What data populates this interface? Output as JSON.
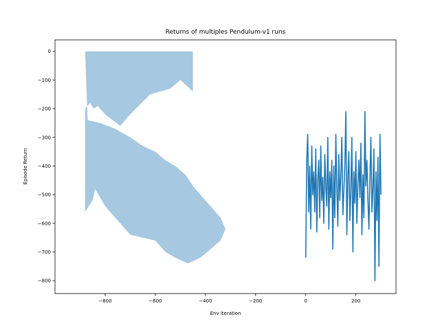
{
  "chart_data": {
    "type": "area",
    "title": "Returns of multiples Pendulum-v1 runs",
    "xlabel": "Env iteration",
    "ylabel": "Episode Return",
    "xlim": [
      -1000,
      360
    ],
    "ylim": [
      -845,
      40
    ],
    "xticks": [
      -800,
      -600,
      -400,
      -200,
      0,
      200
    ],
    "yticks": [
      0,
      -100,
      -200,
      -300,
      -400,
      -500,
      -600,
      -700,
      -800
    ],
    "xtick_labels": [
      "−800",
      "−600",
      "−400",
      "−200",
      "0",
      "200"
    ],
    "ytick_labels": [
      "0",
      "−100",
      "−200",
      "−300",
      "−400",
      "−500",
      "−600",
      "−700",
      "−800"
    ],
    "grid": false,
    "band_color": "#a6c8e1",
    "line_color": "#1f77b4",
    "band": {
      "x": [
        -880,
        -450,
        -450,
        -500,
        -540,
        -620,
        -700,
        -740,
        -800,
        -830,
        -845,
        -860,
        -880,
        -880,
        -880,
        -850,
        -840,
        -800,
        -780,
        -740,
        -700,
        -650,
        -600,
        -560,
        -520,
        -470,
        -420,
        -380,
        -340,
        -320,
        -340,
        -380,
        -420,
        -450,
        -480,
        -520,
        -560,
        -600,
        -650,
        -700,
        -760,
        -820,
        -870
      ],
      "y": [
        0,
        0,
        -140,
        -100,
        -130,
        -150,
        -220,
        -260,
        -220,
        -190,
        -200,
        -180,
        -200,
        -460,
        -560,
        -520,
        -480,
        -540,
        -560,
        -600,
        -640,
        -650,
        -660,
        -700,
        -720,
        -740,
        -720,
        -690,
        -660,
        -620,
        -580,
        -540,
        -500,
        -470,
        -430,
        -400,
        -380,
        -350,
        -330,
        -300,
        -270,
        -250,
        -240
      ]
    },
    "line": {
      "x": [
        0,
        4,
        8,
        12,
        16,
        20,
        24,
        28,
        32,
        36,
        40,
        44,
        48,
        52,
        56,
        60,
        64,
        68,
        72,
        76,
        80,
        84,
        88,
        92,
        96,
        100,
        104,
        108,
        112,
        116,
        120,
        124,
        128,
        132,
        136,
        140,
        144,
        148,
        152,
        156,
        160,
        164,
        168,
        172,
        176,
        180,
        184,
        188,
        192,
        196,
        200,
        204,
        208,
        212,
        216,
        220,
        224,
        228,
        232,
        236,
        240,
        244,
        248,
        252,
        256,
        260,
        264,
        268,
        272,
        276,
        280,
        284,
        288,
        292,
        296,
        300
      ],
      "y": [
        -720,
        -380,
        -290,
        -560,
        -400,
        -620,
        -330,
        -500,
        -420,
        -560,
        -340,
        -630,
        -450,
        -380,
        -580,
        -330,
        -520,
        -440,
        -600,
        -360,
        -470,
        -540,
        -300,
        -620,
        -420,
        -510,
        -380,
        -690,
        -400,
        -580,
        -290,
        -470,
        -610,
        -360,
        -520,
        -430,
        -300,
        -570,
        -490,
        -400,
        -210,
        -640,
        -440,
        -350,
        -590,
        -480,
        -300,
        -700,
        -420,
        -530,
        -350,
        -600,
        -460,
        -380,
        -510,
        -320,
        -640,
        -430,
        -580,
        -210,
        -470,
        -380,
        -520,
        -620,
        -440,
        -300,
        -560,
        -480,
        -340,
        -800,
        -420,
        -590,
        -370,
        -750,
        -290,
        -500
      ]
    }
  }
}
